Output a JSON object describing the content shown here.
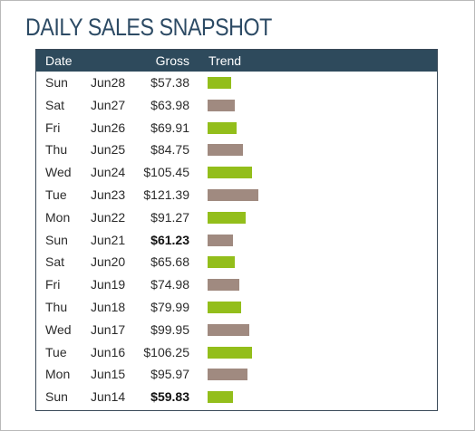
{
  "title": "DAILY SALES SNAPSHOT",
  "columns": {
    "date": "Date",
    "gross": "Gross",
    "trend": "Trend"
  },
  "colors": {
    "up": "#93be1b",
    "down": "#a08a80",
    "header_bg": "#2e4a5c",
    "title": "#2c4a64"
  },
  "rows": [
    {
      "day": "Sun",
      "date": "Jun28",
      "gross": "$57.38",
      "value": 57.38,
      "trend": "up",
      "bold": false
    },
    {
      "day": "Sat",
      "date": "Jun27",
      "gross": "$63.98",
      "value": 63.98,
      "trend": "down",
      "bold": false
    },
    {
      "day": "Fri",
      "date": "Jun26",
      "gross": "$69.91",
      "value": 69.91,
      "trend": "up",
      "bold": false
    },
    {
      "day": "Thu",
      "date": "Jun25",
      "gross": "$84.75",
      "value": 84.75,
      "trend": "down",
      "bold": false
    },
    {
      "day": "Wed",
      "date": "Jun24",
      "gross": "$105.45",
      "value": 105.45,
      "trend": "up",
      "bold": false
    },
    {
      "day": "Tue",
      "date": "Jun23",
      "gross": "$121.39",
      "value": 121.39,
      "trend": "down",
      "bold": false
    },
    {
      "day": "Mon",
      "date": "Jun22",
      "gross": "$91.27",
      "value": 91.27,
      "trend": "up",
      "bold": false
    },
    {
      "day": "Sun",
      "date": "Jun21",
      "gross": "$61.23",
      "value": 61.23,
      "trend": "down",
      "bold": true
    },
    {
      "day": "Sat",
      "date": "Jun20",
      "gross": "$65.68",
      "value": 65.68,
      "trend": "up",
      "bold": false
    },
    {
      "day": "Fri",
      "date": "Jun19",
      "gross": "$74.98",
      "value": 74.98,
      "trend": "down",
      "bold": false
    },
    {
      "day": "Thu",
      "date": "Jun18",
      "gross": "$79.99",
      "value": 79.99,
      "trend": "up",
      "bold": false
    },
    {
      "day": "Wed",
      "date": "Jun17",
      "gross": "$99.95",
      "value": 99.95,
      "trend": "down",
      "bold": false
    },
    {
      "day": "Tue",
      "date": "Jun16",
      "gross": "$106.25",
      "value": 106.25,
      "trend": "up",
      "bold": false
    },
    {
      "day": "Mon",
      "date": "Jun15",
      "gross": "$95.97",
      "value": 95.97,
      "trend": "down",
      "bold": false
    },
    {
      "day": "Sun",
      "date": "Jun14",
      "gross": "$59.83",
      "value": 59.83,
      "trend": "up",
      "bold": true
    }
  ]
}
